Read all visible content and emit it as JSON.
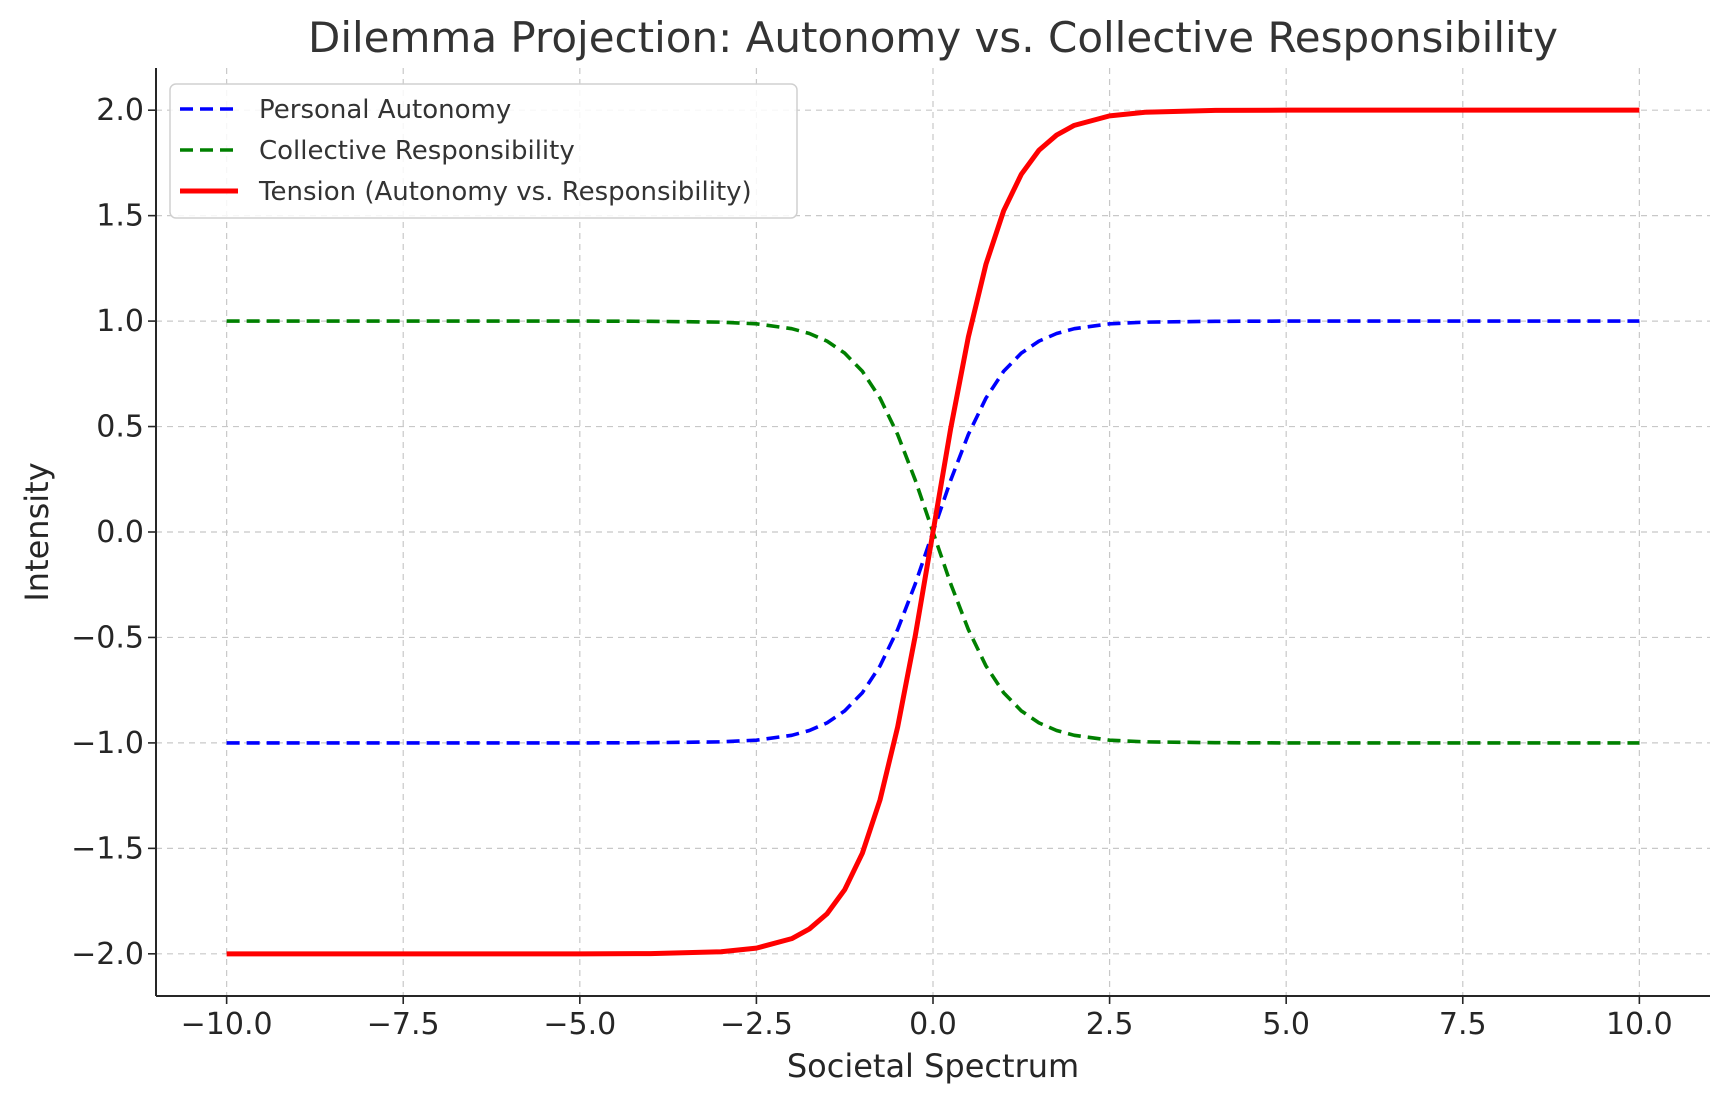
{
  "chart_data": {
    "type": "line",
    "title": "Dilemma Projection: Autonomy vs. Collective Responsibility",
    "xlabel": "Societal Spectrum",
    "ylabel": "Intensity",
    "xlim": [
      -11,
      11
    ],
    "ylim": [
      -2.2,
      2.2
    ],
    "xticks": [
      -10,
      -7.5,
      -5,
      -2.5,
      0,
      2.5,
      5,
      7.5,
      10
    ],
    "xtick_labels": [
      "−10.0",
      "−7.5",
      "−5.0",
      "−2.5",
      "0.0",
      "2.5",
      "5.0",
      "7.5",
      "10.0"
    ],
    "yticks": [
      -2,
      -1.5,
      -1,
      -0.5,
      0,
      0.5,
      1,
      1.5,
      2
    ],
    "ytick_labels": [
      "−2.0",
      "−1.5",
      "−1.0",
      "−0.5",
      "0.0",
      "0.5",
      "1.0",
      "1.5",
      "2.0"
    ],
    "grid": true,
    "legend_position": "top-left",
    "x": [
      -10,
      -9,
      -8,
      -7,
      -6,
      -5,
      -4,
      -3,
      -2.5,
      -2,
      -1.75,
      -1.5,
      -1.25,
      -1,
      -0.75,
      -0.5,
      -0.25,
      0,
      0.25,
      0.5,
      0.75,
      1,
      1.25,
      1.5,
      1.75,
      2,
      2.5,
      3,
      4,
      5,
      6,
      7,
      8,
      9,
      10
    ],
    "series": [
      {
        "name": "Personal Autonomy",
        "color": "#0000ff",
        "style": "dashed",
        "values": [
          -1,
          -1,
          -1,
          -1,
          -1,
          -1,
          -0.999,
          -0.995,
          -0.987,
          -0.964,
          -0.941,
          -0.905,
          -0.848,
          -0.762,
          -0.635,
          -0.462,
          -0.245,
          0,
          0.245,
          0.462,
          0.635,
          0.762,
          0.848,
          0.905,
          0.941,
          0.964,
          0.987,
          0.995,
          0.999,
          1,
          1,
          1,
          1,
          1,
          1
        ]
      },
      {
        "name": "Collective Responsibility",
        "color": "#008000",
        "style": "dashed",
        "values": [
          1,
          1,
          1,
          1,
          1,
          1,
          0.999,
          0.995,
          0.987,
          0.964,
          0.941,
          0.905,
          0.848,
          0.762,
          0.635,
          0.462,
          0.245,
          0,
          -0.245,
          -0.462,
          -0.635,
          -0.762,
          -0.848,
          -0.905,
          -0.941,
          -0.964,
          -0.987,
          -0.995,
          -0.999,
          -1,
          -1,
          -1,
          -1,
          -1,
          -1
        ]
      },
      {
        "name": "Tension (Autonomy vs. Responsibility)",
        "color": "#ff0000",
        "style": "solid",
        "values": [
          -2,
          -2,
          -2,
          -2,
          -2,
          -2,
          -1.999,
          -1.99,
          -1.973,
          -1.928,
          -1.882,
          -1.81,
          -1.696,
          -1.523,
          -1.27,
          -0.924,
          -0.49,
          0,
          0.49,
          0.924,
          1.27,
          1.523,
          1.696,
          1.81,
          1.882,
          1.928,
          1.973,
          1.99,
          1.999,
          2,
          2,
          2,
          2,
          2,
          2
        ]
      }
    ]
  }
}
